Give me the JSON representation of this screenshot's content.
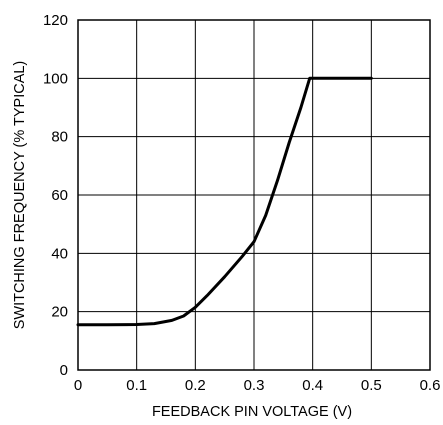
{
  "chart_data": {
    "type": "line",
    "title": "",
    "xlabel": "FEEDBACK PIN VOLTAGE (V)",
    "ylabel": "SWITCHING FREQUENCY (% TYPICAL)",
    "xlim": [
      0,
      0.6
    ],
    "ylim": [
      0,
      120
    ],
    "grid": true,
    "x_ticks": [
      "0",
      "0.1",
      "0.2",
      "0.3",
      "0.4",
      "0.5",
      "0.6"
    ],
    "y_ticks": [
      "0",
      "20",
      "40",
      "60",
      "80",
      "100",
      "120"
    ],
    "series": [
      {
        "x": [
          0,
          0.05,
          0.1,
          0.13,
          0.16,
          0.18,
          0.2,
          0.22,
          0.25,
          0.28,
          0.3,
          0.32,
          0.34,
          0.36,
          0.38,
          0.395,
          0.43,
          0.47,
          0.5
        ],
        "y": [
          15.5,
          15.5,
          15.6,
          15.9,
          17.0,
          18.5,
          21.5,
          25.5,
          32,
          39,
          44,
          53,
          65,
          78,
          90,
          100,
          100,
          100,
          100
        ]
      }
    ]
  }
}
